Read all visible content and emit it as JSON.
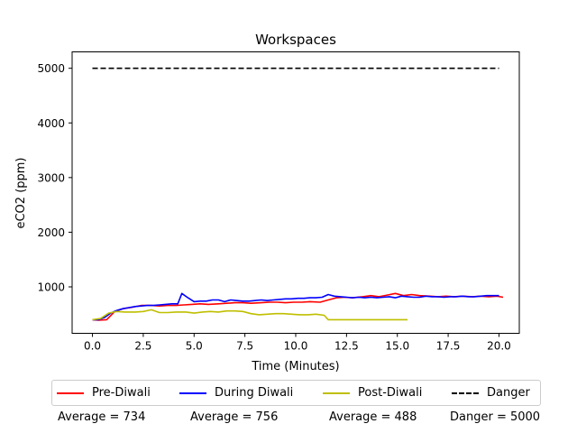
{
  "chart_data": {
    "type": "line",
    "title": "Workspaces",
    "xlabel": "Time (Minutes)",
    "ylabel": "eCO2 (ppm)",
    "xlim": [
      -1.0,
      21.0
    ],
    "ylim": [
      150,
      5300
    ],
    "xticks": [
      0.0,
      2.5,
      5.0,
      7.5,
      10.0,
      12.5,
      15.0,
      17.5,
      20.0
    ],
    "xtick_labels": [
      "0.0",
      "2.5",
      "5.0",
      "7.5",
      "10.0",
      "12.5",
      "15.0",
      "17.5",
      "20.0"
    ],
    "yticks": [
      1000,
      2000,
      3000,
      4000,
      5000
    ],
    "ytick_labels": [
      "1000",
      "2000",
      "3000",
      "4000",
      "5000"
    ],
    "grid": false,
    "legend_position": "bottom",
    "series": [
      {
        "name": "Pre-Diwali",
        "color": "#ff0000",
        "style": "solid",
        "x": [
          0.0,
          0.3,
          0.7,
          1.1,
          1.5,
          2.0,
          2.4,
          2.9,
          3.3,
          3.7,
          4.1,
          4.5,
          4.9,
          5.3,
          5.7,
          6.2,
          6.6,
          7.0,
          7.4,
          7.8,
          8.3,
          8.7,
          9.1,
          9.5,
          9.9,
          10.3,
          10.7,
          11.2,
          11.6,
          12.0,
          12.4,
          12.8,
          13.3,
          13.7,
          14.1,
          14.5,
          14.9,
          15.3,
          15.7,
          16.1,
          16.6,
          17.0,
          17.4,
          17.8,
          18.2,
          18.7,
          19.1,
          19.5,
          19.9,
          20.2
        ],
        "y": [
          400,
          390,
          400,
          550,
          600,
          630,
          660,
          660,
          650,
          660,
          660,
          670,
          680,
          690,
          680,
          690,
          700,
          710,
          710,
          700,
          710,
          720,
          720,
          710,
          720,
          720,
          730,
          720,
          760,
          800,
          810,
          800,
          820,
          840,
          820,
          850,
          880,
          840,
          860,
          840,
          830,
          820,
          830,
          820,
          830,
          820,
          830,
          820,
          830,
          810
        ]
      },
      {
        "name": "During Diwali",
        "color": "#0000ff",
        "style": "solid",
        "x": [
          0.0,
          0.3,
          0.6,
          0.9,
          1.2,
          1.5,
          1.8,
          2.1,
          2.4,
          2.7,
          3.0,
          3.3,
          3.6,
          3.9,
          4.2,
          4.4,
          4.7,
          5.0,
          5.3,
          5.6,
          5.9,
          6.2,
          6.5,
          6.8,
          7.1,
          7.4,
          7.7,
          8.0,
          8.3,
          8.6,
          8.9,
          9.2,
          9.5,
          9.8,
          10.1,
          10.4,
          10.7,
          11.0,
          11.3,
          11.6,
          11.9,
          12.2,
          12.5,
          12.8,
          13.1,
          13.4,
          13.7,
          14.0,
          14.3,
          14.6,
          14.9,
          15.2,
          15.5,
          15.8,
          16.1,
          16.4,
          16.7,
          17.0,
          17.3,
          17.6,
          17.9,
          18.2,
          18.5,
          18.8,
          19.1,
          19.4,
          19.7,
          20.0
        ],
        "y": [
          400,
          400,
          440,
          520,
          570,
          600,
          620,
          640,
          650,
          660,
          660,
          670,
          680,
          690,
          690,
          880,
          800,
          730,
          740,
          740,
          760,
          760,
          730,
          760,
          750,
          740,
          740,
          750,
          760,
          750,
          760,
          770,
          780,
          780,
          790,
          790,
          800,
          800,
          810,
          860,
          830,
          820,
          810,
          800,
          810,
          800,
          810,
          800,
          810,
          820,
          800,
          830,
          820,
          810,
          810,
          830,
          820,
          820,
          810,
          820,
          820,
          830,
          820,
          820,
          830,
          840,
          840,
          840
        ]
      },
      {
        "name": "Post-Diwali",
        "color": "#bfbf00",
        "style": "solid",
        "x": [
          0.0,
          0.4,
          0.8,
          1.2,
          1.6,
          2.1,
          2.5,
          2.9,
          3.3,
          3.7,
          4.1,
          4.6,
          5.0,
          5.4,
          5.8,
          6.2,
          6.6,
          7.0,
          7.4,
          7.8,
          8.2,
          8.6,
          9.0,
          9.4,
          9.8,
          10.2,
          10.6,
          11.0,
          11.4,
          11.6,
          12.0,
          12.5,
          13.0,
          13.5,
          14.0,
          14.5,
          15.0,
          15.5
        ],
        "y": [
          400,
          420,
          520,
          550,
          540,
          540,
          550,
          580,
          530,
          530,
          540,
          540,
          520,
          540,
          550,
          540,
          560,
          560,
          550,
          510,
          490,
          500,
          510,
          510,
          500,
          490,
          490,
          500,
          480,
          400,
          400,
          400,
          400,
          400,
          400,
          400,
          400,
          400
        ]
      },
      {
        "name": "Danger",
        "color": "#000000",
        "style": "dashed",
        "x": [
          0.0,
          20.0
        ],
        "y": [
          5000,
          5000
        ]
      }
    ],
    "averages": [
      {
        "label": "Average = 734"
      },
      {
        "label": "Average = 756"
      },
      {
        "label": "Average = 488"
      },
      {
        "label": "Danger = 5000"
      }
    ]
  }
}
